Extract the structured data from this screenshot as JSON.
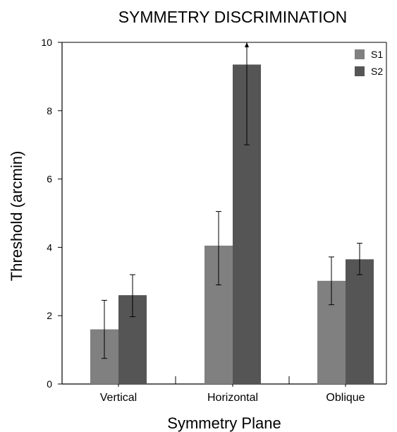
{
  "chart_data": {
    "type": "bar",
    "title": "SYMMETRY DISCRIMINATION",
    "xlabel": "Symmetry Plane",
    "ylabel": "Threshold (arcmin)",
    "ylim": [
      0,
      10
    ],
    "yticks": [
      0,
      2,
      4,
      6,
      8,
      10
    ],
    "categories": [
      "Vertical",
      "Horizontal",
      "Oblique"
    ],
    "series": [
      {
        "name": "S1",
        "color": "#808080",
        "values": [
          1.6,
          4.05,
          3.02
        ],
        "err_low": [
          0.75,
          2.9,
          2.32
        ],
        "err_high": [
          2.45,
          5.05,
          3.72
        ]
      },
      {
        "name": "S2",
        "color": "#555555",
        "values": [
          2.6,
          9.35,
          3.65
        ],
        "err_low": [
          1.97,
          7.0,
          3.2
        ],
        "err_high": [
          3.2,
          10.0,
          4.12
        ]
      }
    ],
    "legend_position": "top-right",
    "grid": false
  }
}
